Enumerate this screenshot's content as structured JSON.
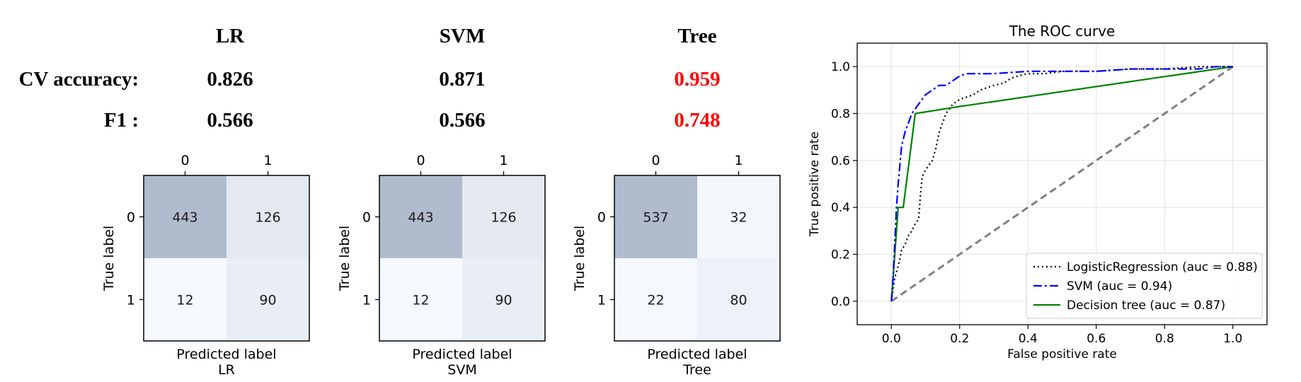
{
  "summary": {
    "models": [
      "LR",
      "SVM",
      "Tree"
    ],
    "rows": [
      {
        "label": "CV accuracy:",
        "values": [
          "0.826",
          "0.871",
          "0.959"
        ]
      },
      {
        "label": "F1 :",
        "values": [
          "0.566",
          "0.566",
          "0.748"
        ]
      }
    ],
    "highlight_model_index": 2,
    "highlight_color": "#ff0000",
    "text_color": "#000000"
  },
  "chart_data": [
    {
      "type": "heatmap",
      "x_ticks": [
        "0",
        "1"
      ],
      "y_ticks": [
        "0",
        "1"
      ],
      "values": [
        [
          443,
          126
        ],
        [
          12,
          90
        ]
      ],
      "xlabel": "Predicted label",
      "subtitle": "LR",
      "ylabel": "True label"
    },
    {
      "type": "heatmap",
      "x_ticks": [
        "0",
        "1"
      ],
      "y_ticks": [
        "0",
        "1"
      ],
      "values": [
        [
          443,
          126
        ],
        [
          12,
          90
        ]
      ],
      "xlabel": "Predicted label",
      "subtitle": "SVM",
      "ylabel": "True label"
    },
    {
      "type": "heatmap",
      "x_ticks": [
        "0",
        "1"
      ],
      "y_ticks": [
        "0",
        "1"
      ],
      "values": [
        [
          537,
          32
        ],
        [
          22,
          80
        ]
      ],
      "xlabel": "Predicted label",
      "subtitle": "Tree",
      "ylabel": "True label"
    },
    {
      "type": "line",
      "title": "The ROC curve",
      "xlabel": "False positive rate",
      "ylabel": "True positive rate",
      "xlim": [
        -0.1,
        1.1
      ],
      "ylim": [
        -0.1,
        1.1
      ],
      "x_ticks": [
        0.0,
        0.2,
        0.4,
        0.6,
        0.8,
        1.0
      ],
      "y_ticks": [
        0.0,
        0.2,
        0.4,
        0.6,
        0.8,
        1.0
      ],
      "x_tick_labels": [
        "0.0",
        "0.2",
        "0.4",
        "0.6",
        "0.8",
        "1.0"
      ],
      "y_tick_labels": [
        "0.0",
        "0.2",
        "0.4",
        "0.6",
        "0.8",
        "1.0"
      ],
      "grid": true,
      "legend_position": "lower-right",
      "series": [
        {
          "name": "LogisticRegression (auc = 0.88)",
          "color": "#000000",
          "style": "dotted",
          "x": [
            0.0,
            0.01,
            0.02,
            0.025,
            0.03,
            0.04,
            0.05,
            0.06,
            0.07,
            0.08,
            0.085,
            0.09,
            0.1,
            0.11,
            0.12,
            0.13,
            0.14,
            0.15,
            0.16,
            0.17,
            0.18,
            0.19,
            0.2,
            0.22,
            0.24,
            0.26,
            0.28,
            0.3,
            0.33,
            0.35,
            0.37,
            0.4,
            0.45,
            0.5,
            0.6,
            0.7,
            0.8,
            0.9,
            1.0
          ],
          "y": [
            0.0,
            0.1,
            0.15,
            0.18,
            0.22,
            0.24,
            0.28,
            0.3,
            0.33,
            0.35,
            0.45,
            0.53,
            0.56,
            0.58,
            0.6,
            0.65,
            0.72,
            0.76,
            0.8,
            0.82,
            0.84,
            0.85,
            0.86,
            0.87,
            0.88,
            0.9,
            0.91,
            0.92,
            0.93,
            0.95,
            0.96,
            0.97,
            0.97,
            0.98,
            0.98,
            0.99,
            0.99,
            1.0,
            1.0
          ]
        },
        {
          "name": "SVM (auc = 0.94)",
          "color": "#0000ff",
          "style": "dashdot",
          "x": [
            0.0,
            0.005,
            0.01,
            0.015,
            0.02,
            0.025,
            0.03,
            0.04,
            0.05,
            0.06,
            0.08,
            0.1,
            0.12,
            0.14,
            0.16,
            0.18,
            0.2,
            0.22,
            0.25,
            0.3,
            0.4,
            0.5,
            0.6,
            0.7,
            0.8,
            0.9,
            0.95,
            1.0
          ],
          "y": [
            0.0,
            0.1,
            0.25,
            0.4,
            0.5,
            0.58,
            0.66,
            0.72,
            0.76,
            0.8,
            0.84,
            0.88,
            0.9,
            0.92,
            0.92,
            0.94,
            0.96,
            0.97,
            0.97,
            0.97,
            0.98,
            0.98,
            0.98,
            0.99,
            0.99,
            0.99,
            1.0,
            1.0
          ]
        },
        {
          "name": "Decision tree (auc = 0.87)",
          "color": "#008000",
          "style": "solid",
          "x": [
            0.0,
            0.02,
            0.035,
            0.07,
            0.2,
            1.0
          ],
          "y": [
            0.0,
            0.4,
            0.4,
            0.8,
            0.83,
            1.0
          ]
        },
        {
          "color": "#808080",
          "style": "dashed",
          "x": [
            0.0,
            1.0
          ],
          "y": [
            0.0,
            1.0
          ]
        }
      ]
    }
  ]
}
